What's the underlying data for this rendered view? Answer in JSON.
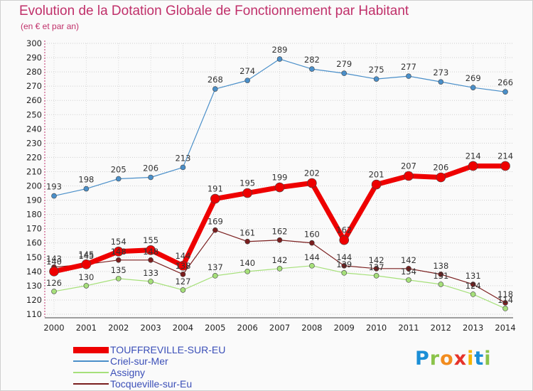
{
  "chart_data": {
    "type": "line",
    "title": "Evolution de la Dotation Globale de Fonctionnement par Habitant",
    "subtitle": "(en € et par an)",
    "xlabel": "",
    "ylabel": "",
    "ylim": [
      110,
      300
    ],
    "yticks": [
      110,
      120,
      130,
      140,
      150,
      160,
      170,
      180,
      190,
      200,
      210,
      220,
      230,
      240,
      250,
      260,
      270,
      280,
      290,
      300
    ],
    "grid": true,
    "legend_position": "bottom-left",
    "categories": [
      "2000",
      "2001",
      "2002",
      "2003",
      "2004",
      "2005",
      "2006",
      "2007",
      "2008",
      "2009",
      "2010",
      "2011",
      "2012",
      "2013",
      "2014"
    ],
    "series": [
      {
        "name": "Criel-sur-Mer",
        "color": "#4a8fc9",
        "values": [
          193,
          198,
          205,
          206,
          213,
          268,
          274,
          289,
          282,
          279,
          275,
          277,
          273,
          269,
          266
        ]
      },
      {
        "name": "Assigny",
        "color": "#a6e07a",
        "values": [
          126,
          130,
          135,
          133,
          127,
          137,
          140,
          142,
          144,
          139,
          137,
          134,
          131,
          124,
          114
        ]
      },
      {
        "name": "Tocqueville-sur-Eu",
        "color": "#7a1e1e",
        "values": [
          143,
          145,
          148,
          148,
          138,
          169,
          161,
          162,
          160,
          144,
          142,
          142,
          138,
          131,
          118
        ]
      },
      {
        "name": "TOUFFREVILLE-SUR-EU",
        "color": "#ee0000",
        "values": [
          140,
          145,
          154,
          155,
          144,
          191,
          195,
          199,
          202,
          162,
          201,
          207,
          206,
          214,
          214
        ]
      }
    ]
  },
  "legend": {
    "items": [
      {
        "label": "TOUFFREVILLE-SUR-EU",
        "color": "#ee0000"
      },
      {
        "label": "Criel-sur-Mer",
        "color": "#4a8fc9"
      },
      {
        "label": "Assigny",
        "color": "#a6e07a"
      },
      {
        "label": "Tocqueville-sur-Eu",
        "color": "#7a1e1e"
      }
    ]
  },
  "brand": {
    "letters": [
      "P",
      "r",
      "o",
      "x",
      "i",
      "t",
      "i"
    ],
    "colors": [
      "#1a8ed6",
      "#8bc34a",
      "#f28c1e",
      "#e6332a",
      "#f5b400",
      "#1a8ed6",
      "#8bc34a"
    ]
  }
}
